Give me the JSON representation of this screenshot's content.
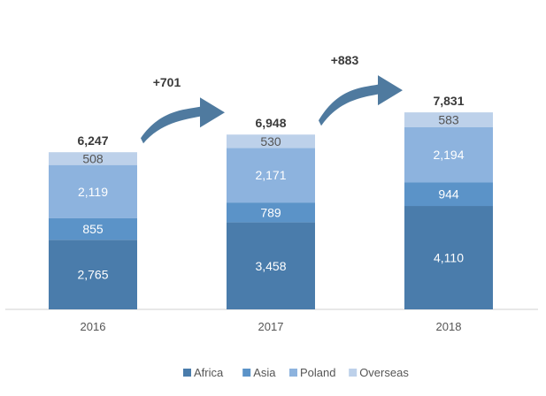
{
  "chart_data": {
    "type": "bar",
    "stacked": true,
    "categories": [
      "2016",
      "2017",
      "2018"
    ],
    "series": [
      {
        "name": "Africa",
        "values": [
          2765,
          3458,
          4110
        ],
        "labels": [
          "2,765",
          "3,458",
          "4,110"
        ],
        "color": "#4a7cab",
        "label_color": "#ffffff"
      },
      {
        "name": "Asia",
        "values": [
          855,
          789,
          944
        ],
        "labels": [
          "855",
          "789",
          "944"
        ],
        "color": "#5b93c8",
        "label_color": "#ffffff"
      },
      {
        "name": "Poland",
        "values": [
          2119,
          2171,
          2194
        ],
        "labels": [
          "2,119",
          "2,171",
          "2,194"
        ],
        "color": "#8db3de",
        "label_color": "#ffffff"
      },
      {
        "name": "Overseas",
        "values": [
          508,
          530,
          583
        ],
        "labels": [
          "508",
          "530",
          "583"
        ],
        "color": "#bdd1ea",
        "label_color": "#555555"
      }
    ],
    "totals": [
      "6,247",
      "6,948",
      "7,831"
    ],
    "total_values": [
      6247,
      6948,
      7831
    ],
    "annotations": [
      {
        "text": "+701",
        "from": "2016",
        "to": "2017"
      },
      {
        "text": "+883",
        "from": "2017",
        "to": "2018"
      }
    ],
    "arrow_color": "#4f7a9f",
    "legend": [
      "Africa",
      "Asia",
      "Poland",
      "Overseas"
    ],
    "legend_position": "bottom",
    "title": "",
    "xlabel": "",
    "ylabel": "",
    "ylim": [
      0,
      10400
    ],
    "grid": false
  }
}
